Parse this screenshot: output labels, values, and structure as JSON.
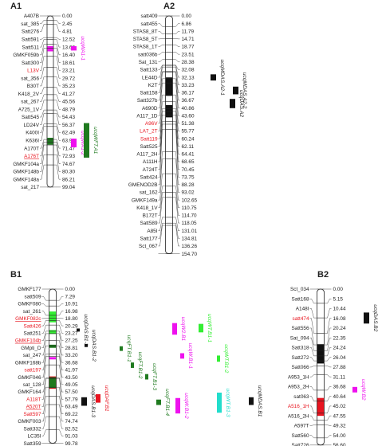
{
  "colors": {
    "text": "#222222",
    "highlight": "#e8141e",
    "chromosome_fill": "#ffffff",
    "chromosome_stroke": "#222222",
    "black": "#111111",
    "green_dark": "#1f7a1f",
    "green_light": "#33ee33",
    "magenta": "#ee11ee",
    "cyan": "#22ddcc",
    "red": "#e81420"
  },
  "linkage_groups": [
    {
      "id": "A1",
      "title": "A1",
      "markers": [
        {
          "name": "A407B",
          "pos": "0.00"
        },
        {
          "name": "sat_385",
          "pos": "2.45"
        },
        {
          "name": "Satt276",
          "pos": "4.81"
        },
        {
          "name": "Satt591",
          "pos": "12.52"
        },
        {
          "name": "Satt511",
          "pos": "13.62"
        },
        {
          "name": "GMKF059b",
          "pos": "16.40"
        },
        {
          "name": "Satt300",
          "pos": "18.61"
        },
        {
          "name": "L13V",
          "pos": "23.21",
          "highlight": true
        },
        {
          "name": "sat_356",
          "pos": "29.72"
        },
        {
          "name": "B30T",
          "pos": "35.23"
        },
        {
          "name": "K418_2V",
          "pos": "41.27"
        },
        {
          "name": "sat_267",
          "pos": "45.56"
        },
        {
          "name": "A725_1V",
          "pos": "48.79"
        },
        {
          "name": "Satt545",
          "pos": "54.43"
        },
        {
          "name": "LD24V",
          "pos": "56.37"
        },
        {
          "name": "K400I",
          "pos": "62.49"
        },
        {
          "name": "K636I",
          "pos": "63.96"
        },
        {
          "name": "A170T",
          "pos": "71.47"
        },
        {
          "name": "A176T",
          "pos": "72.93",
          "highlight": true,
          "underline": true
        },
        {
          "name": "GMKF104a",
          "pos": "74.67"
        },
        {
          "name": "GMKF148b",
          "pos": "80.30"
        },
        {
          "name": "GMKF148a",
          "pos": "86.21"
        },
        {
          "name": "sat_217",
          "pos": "99.04"
        }
      ],
      "qtls": [
        {
          "label": "ucqWA1-1",
          "color": "magenta"
        },
        {
          "label": "ucqWA1-2",
          "color": "magenta"
        },
        {
          "label": "ucqWFT.A1",
          "color": "green_dark"
        }
      ]
    },
    {
      "id": "A2",
      "title": "A2",
      "markers": [
        {
          "name": "satt409",
          "pos": "0.00"
        },
        {
          "name": "satt455",
          "pos": "6.86"
        },
        {
          "name": "STAS8_8T",
          "pos": "11.79"
        },
        {
          "name": "STAS8_5T",
          "pos": "14.71"
        },
        {
          "name": "STAS8_1T",
          "pos": "18.77"
        },
        {
          "name": "satt036b",
          "pos": "23.51"
        },
        {
          "name": "Sat_131",
          "pos": "28.38"
        },
        {
          "name": "Satt133",
          "pos": "32.08"
        },
        {
          "name": "LE44D",
          "pos": "32.13"
        },
        {
          "name": "K2T",
          "pos": "33.23"
        },
        {
          "name": "Satt158",
          "pos": "36.17"
        },
        {
          "name": "Satt327b",
          "pos": "36.67"
        },
        {
          "name": "A690D",
          "pos": "40.86"
        },
        {
          "name": "A117_1D",
          "pos": "43.60"
        },
        {
          "name": "A96V",
          "pos": "51.38",
          "highlight": true
        },
        {
          "name": "LA7_2T",
          "pos": "55.77",
          "highlight": true
        },
        {
          "name": "Satt119",
          "pos": "60.24",
          "highlight": true
        },
        {
          "name": "Satt525",
          "pos": "62.11"
        },
        {
          "name": "A117_2H",
          "pos": "64.41"
        },
        {
          "name": "A111H",
          "pos": "68.65"
        },
        {
          "name": "A724T",
          "pos": "70.45"
        },
        {
          "name": "Satt424",
          "pos": "73.75"
        },
        {
          "name": "GMENOD2B",
          "pos": "88.28"
        },
        {
          "name": "sat_162",
          "pos": "93.02"
        },
        {
          "name": "GMKF149a",
          "pos": "102.65"
        },
        {
          "name": "K418_1V",
          "pos": "110.75"
        },
        {
          "name": "B172T",
          "pos": "114.70"
        },
        {
          "name": "Satt589",
          "pos": "118.05"
        },
        {
          "name": "A85I",
          "pos": "131.01"
        },
        {
          "name": "Satt177",
          "pos": "134.81"
        },
        {
          "name": "Sct_067",
          "pos": "136.26"
        },
        {
          "name": "",
          "pos": "154.70"
        }
      ],
      "qtls": [
        {
          "label": "ucqDAS.A2",
          "color": "black"
        },
        {
          "label": "ucqMDAS.A2-1",
          "color": "black"
        },
        {
          "label": "ucqMDAS.A2-2",
          "color": "black"
        }
      ]
    },
    {
      "id": "B1",
      "title": "B1",
      "markers": [
        {
          "name": "GMKF177",
          "pos": "0.00"
        },
        {
          "name": "satt509",
          "pos": "7.29"
        },
        {
          "name": "GMKF080",
          "pos": "10.91"
        },
        {
          "name": "sat_261",
          "pos": "16.98"
        },
        {
          "name": "GMKF082c",
          "pos": "18.80",
          "highlight": true,
          "underline": true
        },
        {
          "name": "Satt426",
          "pos": "20.29",
          "highlight": true
        },
        {
          "name": "Satt251",
          "pos": "23.27"
        },
        {
          "name": "GMKF104b",
          "pos": "27.25",
          "highlight": true,
          "underline": true
        },
        {
          "name": "GMpti_D",
          "pos": "28.81"
        },
        {
          "name": "sat_247",
          "pos": "33.20"
        },
        {
          "name": "GMKF168b",
          "pos": "36.68"
        },
        {
          "name": "satt197",
          "pos": "41.97",
          "highlight": true
        },
        {
          "name": "GMKF046",
          "pos": "43.50"
        },
        {
          "name": "sat_128",
          "pos": "49.05"
        },
        {
          "name": "GMKF164",
          "pos": "57.50"
        },
        {
          "name": "A118T",
          "pos": "57.79",
          "highlight": true
        },
        {
          "name": "A520T",
          "pos": "63.49",
          "highlight": true,
          "underline": true
        },
        {
          "name": "Satt597",
          "pos": "69.22",
          "highlight": true
        },
        {
          "name": "GMKF003",
          "pos": "74.74"
        },
        {
          "name": "Satt332",
          "pos": "82.52"
        },
        {
          "name": "LC35I",
          "pos": "91.03"
        },
        {
          "name": "Satt359",
          "pos": "99.78"
        }
      ],
      "qtls": [
        {
          "label": "ucqDAS.B1-1",
          "color": "black"
        },
        {
          "label": "ucqDAS.B1-2",
          "color": "black"
        },
        {
          "label": "ucqDAS.B1-3",
          "color": "black"
        },
        {
          "label": "ucqDAF.B1",
          "color": "red"
        },
        {
          "label": "ucqFT.B1-1",
          "color": "green_dark"
        },
        {
          "label": "ucqFT.B1-2",
          "color": "green_dark"
        },
        {
          "label": "ucqFT.B1-3",
          "color": "green_dark"
        },
        {
          "label": "ucqFT.B1-4",
          "color": "green_dark"
        },
        {
          "label": "ucqW2.B1",
          "color": "magenta"
        },
        {
          "label": "ucqW.B1-1",
          "color": "magenta"
        },
        {
          "label": "ucqW.B1-2",
          "color": "magenta"
        },
        {
          "label": "ucqWT.B1-1",
          "color": "green_light"
        },
        {
          "label": "ucqWT.B1-2",
          "color": "green_light"
        },
        {
          "label": "ucqWT.B1-3",
          "color": "cyan"
        },
        {
          "label": "ucqMDAS.B1",
          "color": "black"
        }
      ]
    },
    {
      "id": "B2",
      "title": "B2",
      "markers": [
        {
          "name": "Sct_034",
          "pos": "0.00"
        },
        {
          "name": "Satt168",
          "pos": "5.15"
        },
        {
          "name": "A148I",
          "pos": "10.44"
        },
        {
          "name": "satt474",
          "pos": "16.08",
          "highlight": true
        },
        {
          "name": "Satt556",
          "pos": "20.24"
        },
        {
          "name": "Sat_094",
          "pos": "22.35"
        },
        {
          "name": "Satt318",
          "pos": "24.24"
        },
        {
          "name": "Satt272",
          "pos": "26.04"
        },
        {
          "name": "Satt066",
          "pos": "27.88"
        },
        {
          "name": "A953_1H",
          "pos": "31.11"
        },
        {
          "name": "A953_2H",
          "pos": "36.68"
        },
        {
          "name": "sat063",
          "pos": "40.64"
        },
        {
          "name": "A516_1H",
          "pos": "45.02",
          "highlight": true
        },
        {
          "name": "A516_2H",
          "pos": "47.55"
        },
        {
          "name": "A597T",
          "pos": "49.32"
        },
        {
          "name": "Satt560",
          "pos": "54.00"
        },
        {
          "name": "Satt726",
          "pos": "56.60"
        }
      ],
      "qtls": [
        {
          "label": "ucqDAS.B2",
          "color": "black"
        },
        {
          "label": "ucqW.B2",
          "color": "magenta"
        }
      ]
    }
  ]
}
